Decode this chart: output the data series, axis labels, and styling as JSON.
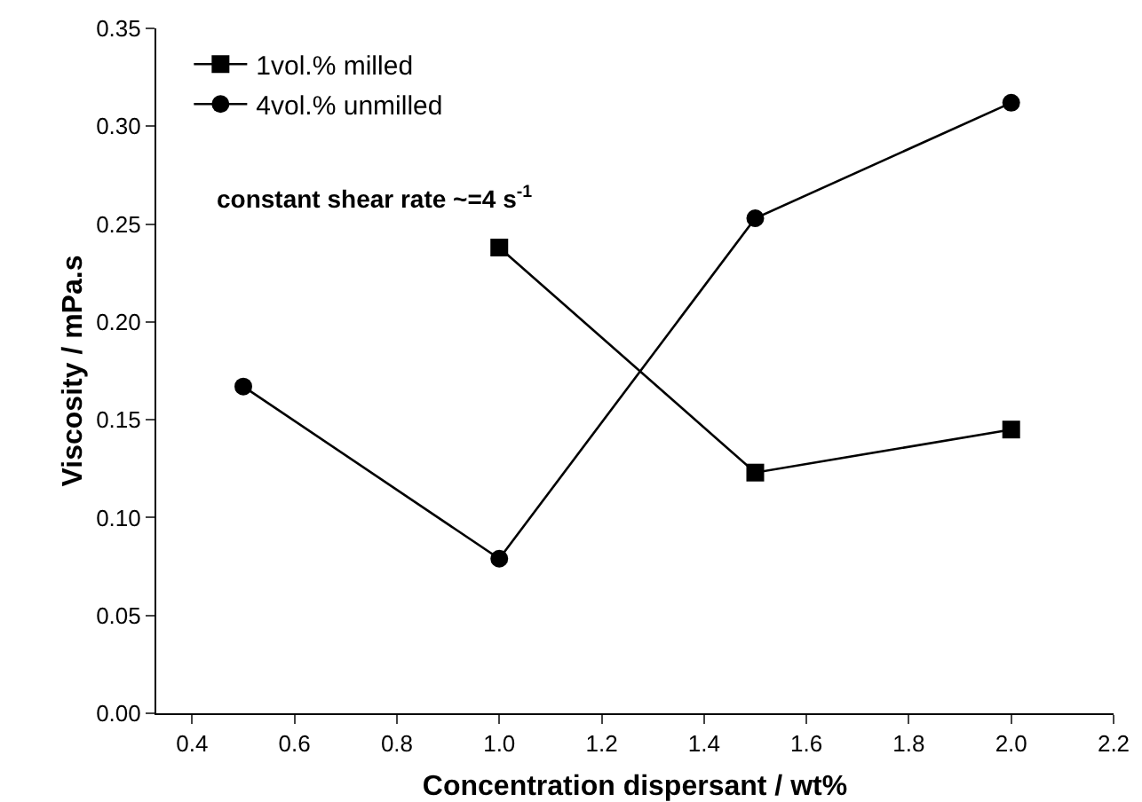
{
  "chart_data": {
    "type": "line",
    "xlabel": "Concentration dispersant / wt%",
    "ylabel": "Viscosity / mPa.s",
    "xlim": [
      0.33,
      2.2
    ],
    "xticks": [
      0.4,
      0.6,
      0.8,
      {
        "value": 1,
        "label": "1.0"
      },
      1.2,
      1.4,
      1.6,
      1.8,
      {
        "value": 2,
        "label": "2.0"
      },
      2.2
    ],
    "ylim": [
      0,
      0.35
    ],
    "yticks": [
      {
        "value": 0,
        "label": "0.00"
      },
      0.05,
      {
        "value": 0.1,
        "label": "0.10"
      },
      0.15,
      {
        "value": 0.2,
        "label": "0.20"
      },
      0.25,
      {
        "value": 0.3,
        "label": "0.30"
      },
      0.35
    ],
    "series": [
      {
        "name": "1vol.% milled",
        "color": "#000000",
        "marker": "square",
        "x": [
          1.0,
          1.5,
          2.0
        ],
        "values": [
          0.238,
          0.123,
          0.145
        ]
      },
      {
        "name": "4vol.% unmilled",
        "color": "#000000",
        "marker": "circle",
        "x": [
          0.5,
          1.0,
          1.5,
          2.0
        ],
        "values": [
          0.167,
          0.079,
          0.253,
          0.312
        ]
      }
    ],
    "annotations": [
      "constant shear rate ~=4 s$^{-1}$"
    ],
    "legend": "top left",
    "grid": false,
    "line_style": "solid"
  }
}
